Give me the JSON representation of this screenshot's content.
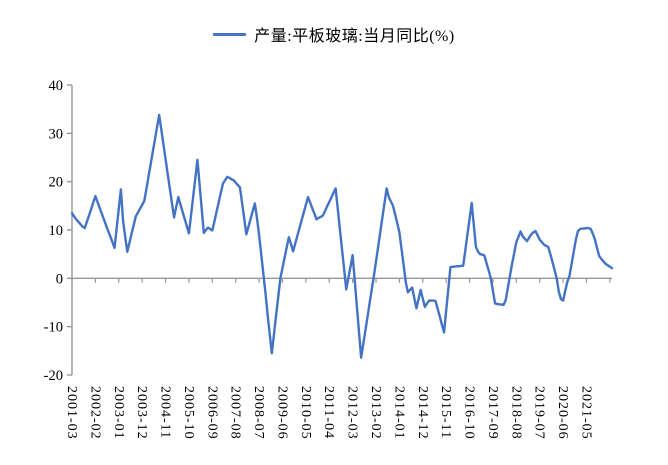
{
  "legend": {
    "label": "产量:平板玻璃:当月同比(%)"
  },
  "colors": {
    "series": "#4472C4",
    "axis": "#969696",
    "text": "#000000",
    "background": "#FFFFFF"
  },
  "chart_data": {
    "type": "line",
    "title": "",
    "legend_position": "top",
    "grid": false,
    "x_unit": "month",
    "x_tick_interval": 11,
    "x_tick_labels": [
      "2001-03",
      "2002-02",
      "2003-01",
      "2003-12",
      "2004-11",
      "2005-10",
      "2006-09",
      "2007-08",
      "2008-07",
      "2009-06",
      "2010-05",
      "2011-04",
      "2012-03",
      "2013-02",
      "2014-01",
      "2014-12",
      "2015-11",
      "2016-10",
      "2017-09",
      "2018-08",
      "2019-07",
      "2020-06",
      "2021-05"
    ],
    "ylim": [
      -20,
      40
    ],
    "y_ticks": [
      -20,
      -10,
      0,
      10,
      20,
      30,
      40
    ],
    "series": [
      {
        "name": "产量:平板玻璃:当月同比(%)",
        "color": "#4472C4",
        "values": [
          13.5,
          12.8,
          12.2,
          11.7,
          11.2,
          10.7,
          10.4,
          11.7,
          13.0,
          14.3,
          15.7,
          17.0,
          15.8,
          14.6,
          13.4,
          12.2,
          11.0,
          9.8,
          8.7,
          7.5,
          6.3,
          10.3,
          14.4,
          18.4,
          12.0,
          8.7,
          5.5,
          7.3,
          9.2,
          11.0,
          12.8,
          13.6,
          14.4,
          15.2,
          16.0,
          18.5,
          21.1,
          23.6,
          26.2,
          28.7,
          31.3,
          33.8,
          30.8,
          27.7,
          24.7,
          21.6,
          18.6,
          15.6,
          12.6,
          14.7,
          16.8,
          15.3,
          13.8,
          12.3,
          10.8,
          9.3,
          13.1,
          16.9,
          20.7,
          24.5,
          19.5,
          14.4,
          9.4,
          10.0,
          10.5,
          10.2,
          9.9,
          11.8,
          13.8,
          15.7,
          17.7,
          19.6,
          20.3,
          21.0,
          20.8,
          20.5,
          20.3,
          19.8,
          19.3,
          18.8,
          15.6,
          12.4,
          9.1,
          10.7,
          12.3,
          13.9,
          15.5,
          12.5,
          9.0,
          5.0,
          1.0,
          -3.0,
          -7.5,
          -11.5,
          -15.5,
          -11.6,
          -7.7,
          -3.9,
          0.0,
          2.1,
          4.3,
          6.4,
          8.5,
          7.1,
          5.6,
          7.2,
          8.8,
          10.4,
          12.0,
          13.6,
          15.2,
          16.8,
          15.7,
          14.5,
          13.4,
          12.2,
          12.5,
          12.7,
          13.0,
          13.9,
          14.9,
          15.8,
          16.7,
          17.7,
          18.6,
          14.4,
          10.2,
          6.0,
          1.9,
          -2.3,
          0.1,
          2.4,
          4.8,
          -0.5,
          -5.8,
          -11.1,
          -16.4,
          -13.6,
          -10.8,
          -8.0,
          -5.1,
          -2.3,
          0.5,
          3.5,
          6.5,
          9.5,
          12.6,
          15.6,
          18.6,
          16.8,
          15.9,
          15.0,
          13.2,
          11.4,
          9.5,
          6.1,
          2.7,
          -0.8,
          -2.9,
          -2.4,
          -1.9,
          -4.1,
          -6.2,
          -4.3,
          -2.4,
          -4.2,
          -5.9,
          -5.2,
          -4.6,
          -4.6,
          -4.6,
          -4.7,
          -6.3,
          -7.9,
          -9.6,
          -11.2,
          -6.7,
          -2.2,
          2.3,
          2.4,
          2.4,
          2.5,
          2.5,
          2.6,
          2.6,
          5.8,
          9.1,
          12.3,
          15.6,
          11.0,
          6.5,
          5.5,
          5.0,
          4.9,
          4.7,
          3.1,
          1.6,
          0.0,
          -2.6,
          -5.2,
          -5.3,
          -5.4,
          -5.4,
          -5.5,
          -4.5,
          -2.0,
          0.5,
          3.0,
          5.2,
          7.5,
          8.6,
          9.7,
          8.7,
          8.2,
          7.7,
          8.4,
          9.1,
          9.5,
          9.8,
          8.9,
          8.0,
          7.5,
          7.0,
          6.7,
          6.5,
          5.0,
          3.4,
          1.7,
          0.0,
          -2.8,
          -4.3,
          -4.6,
          -2.6,
          -0.7,
          0.5,
          3.0,
          5.5,
          8.0,
          9.8,
          10.2,
          10.3,
          10.3,
          10.4,
          10.4,
          10.2,
          9.2,
          8.0,
          6.2,
          4.6,
          4.0,
          3.5,
          3.0,
          2.7,
          2.4,
          2.1
        ]
      }
    ]
  }
}
